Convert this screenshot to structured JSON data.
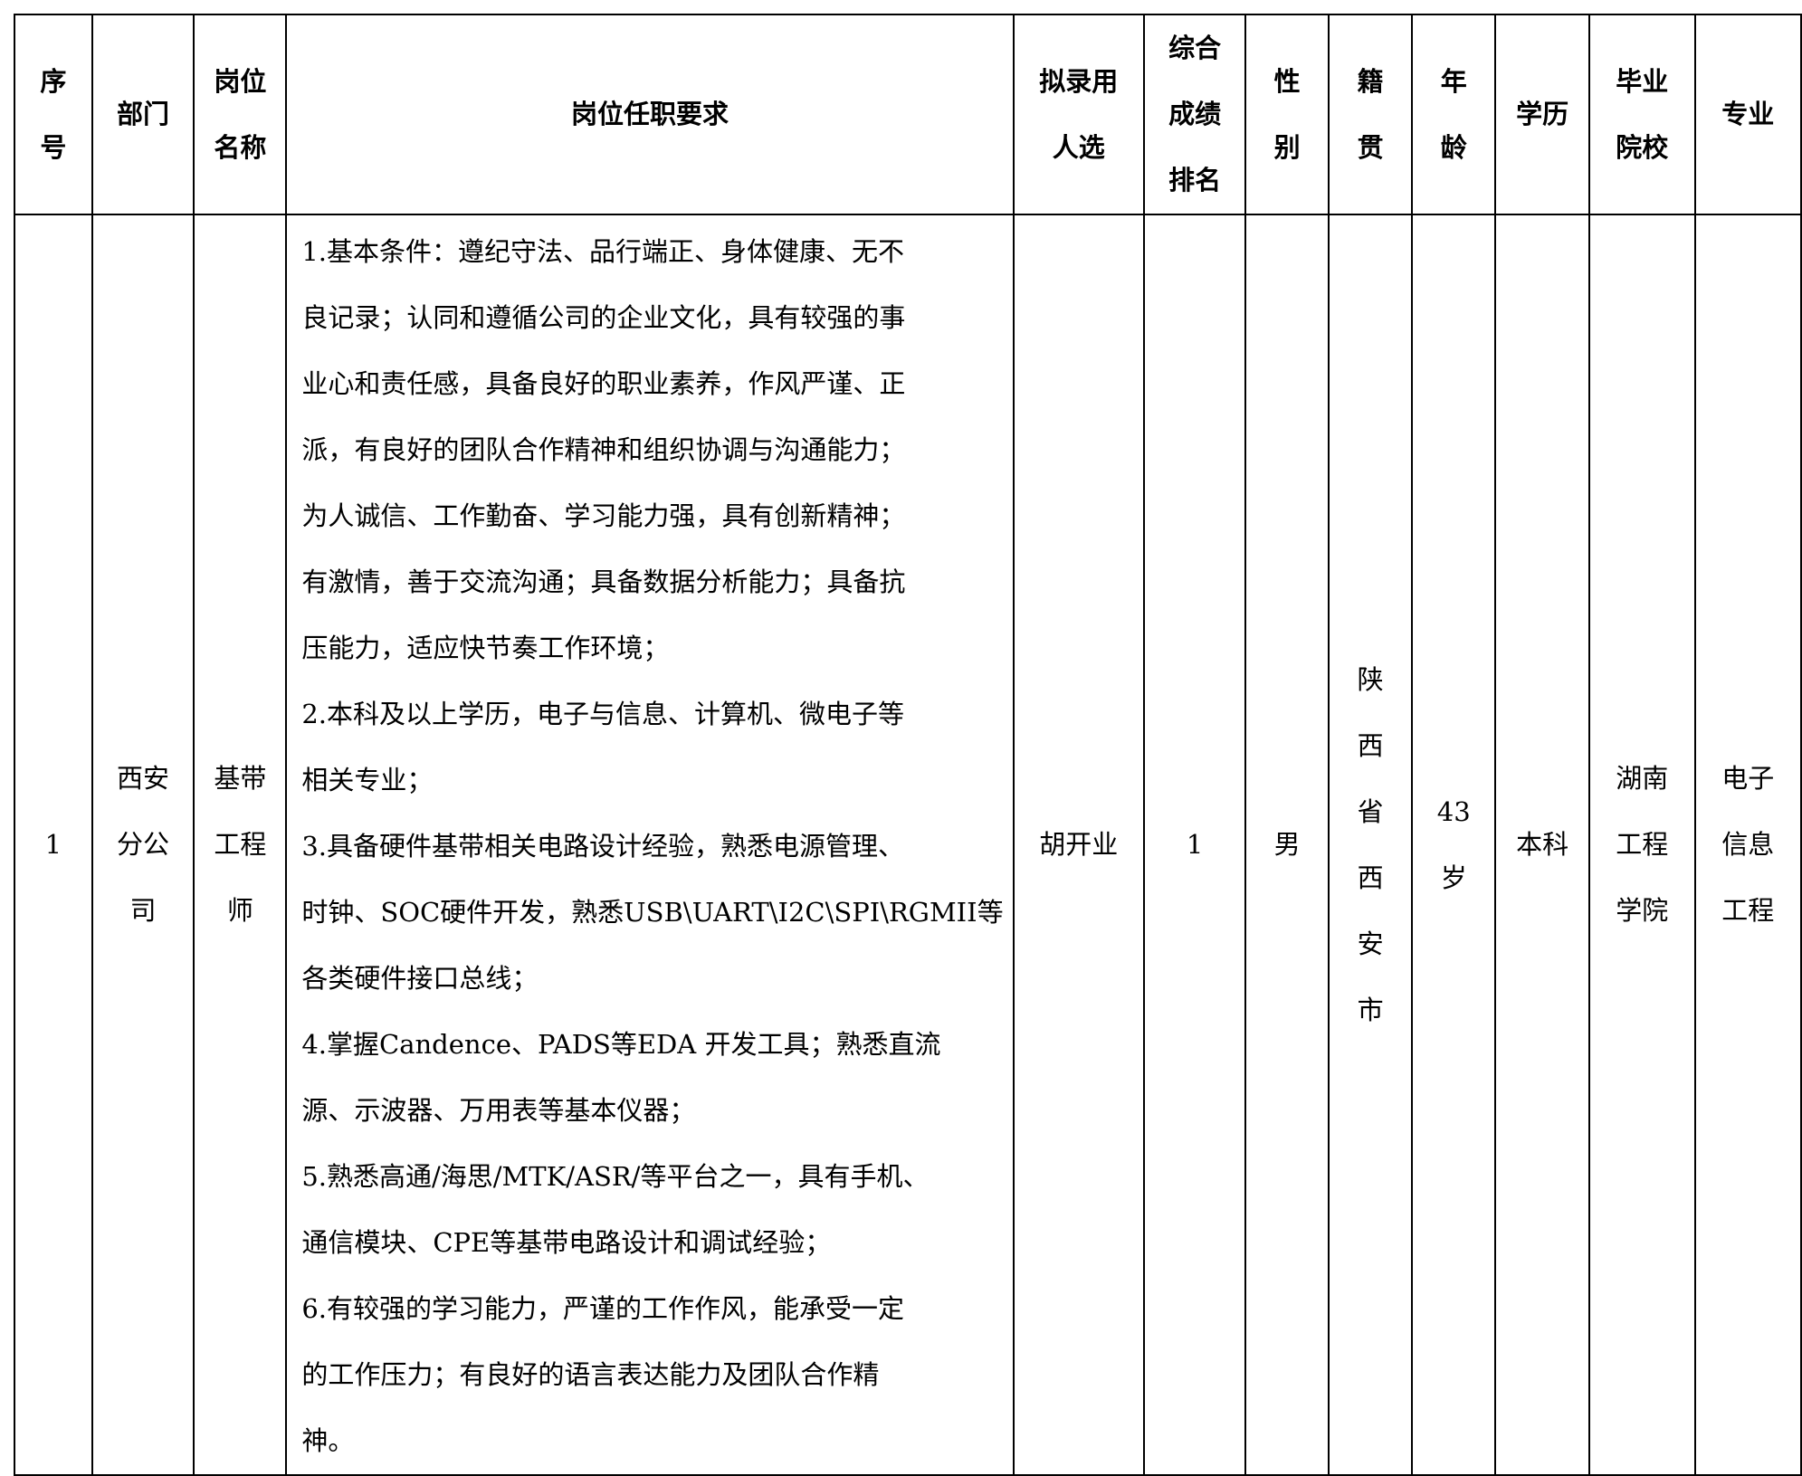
{
  "headers": [
    [
      "序",
      "号"
    ],
    [
      "部门"
    ],
    [
      "岗位",
      "名称"
    ],
    [
      "岗位任职要求"
    ],
    [
      "拟录用",
      "人选"
    ],
    [
      "综合",
      "成绩",
      "排名"
    ],
    [
      "性",
      "别"
    ],
    [
      "籍",
      "贯"
    ],
    [
      "年",
      "龄"
    ],
    [
      "学历"
    ],
    [
      "毕业",
      "院校"
    ],
    [
      "专业"
    ]
  ],
  "rows": [
    {
      "index": [
        "1"
      ],
      "department": [
        "西安",
        "分公",
        "司"
      ],
      "position": [
        "基带",
        "工程",
        "师"
      ],
      "requirements": [
        "1.基本条件：遵纪守法、品行端正、身体健康、无不",
        "良记录；认同和遵循公司的企业文化，具有较强的事",
        "业心和责任感，具备良好的职业素养，作风严谨、正",
        "派，有良好的团队合作精神和组织协调与沟通能力；",
        "为人诚信、工作勤奋、学习能力强，具有创新精神；",
        "有激情，善于交流沟通；具备数据分析能力；具备抗",
        "压能力，适应快节奏工作环境；",
        "2.本科及以上学历，电子与信息、计算机、微电子等",
        "相关专业；",
        "3.具备硬件基带相关电路设计经验，熟悉电源管理、",
        "时钟、SOC硬件开发，熟悉USB\\UART\\I2C\\SPI\\RGMII等",
        "各类硬件接口总线；",
        "4.掌握Candence、PADS等EDA 开发工具；熟悉直流",
        "源、示波器、万用表等基本仪器；",
        "5.熟悉高通/海思/MTK/ASR/等平台之一，具有手机、",
        "通信模块、CPE等基带电路设计和调试经验；",
        "6.有较强的学习能力，严谨的工作作风，能承受一定",
        "的工作压力；有良好的语言表达能力及团队合作精",
        "神。"
      ],
      "candidate": [
        "胡开业"
      ],
      "rank": [
        "1"
      ],
      "gender": [
        "男"
      ],
      "native_place": [
        "陕",
        "西",
        "省",
        "西",
        "安",
        "市"
      ],
      "age": [
        "43",
        "岁"
      ],
      "education": [
        "本科"
      ],
      "school": [
        "湖南",
        "工程",
        "学院"
      ],
      "major": [
        "电子",
        "信息",
        "工程"
      ]
    }
  ]
}
